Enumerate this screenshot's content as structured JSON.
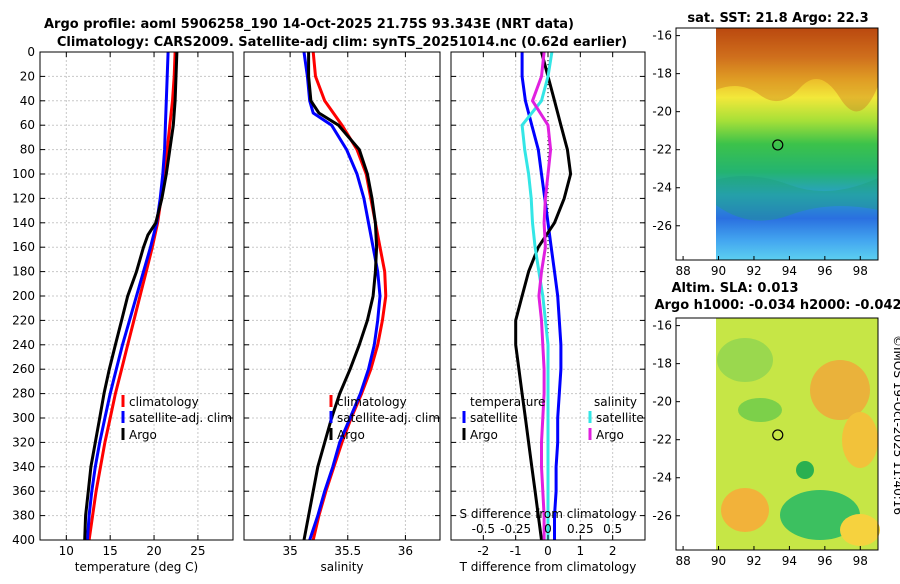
{
  "header": {
    "title_line1": "Argo profile: aoml 5906258_190 14-Oct-2025 21.75S 93.343E (NRT data)",
    "title_line2": "Climatology: CARS2009. Satellite-adj clim: synTS_20251014.nc (0.62d earlier)"
  },
  "maps": {
    "sst_title": "sat. SST: 21.8 Argo: 22.3",
    "sla_title1": "Altim. SLA: 0.013",
    "sla_title2": "Argo h1000: -0.034 h2000: -0.042",
    "credit": "©IMOS 19-Oct-2025 11:40:16",
    "lon_ticks": [
      "88",
      "90",
      "92",
      "94",
      "96",
      "98"
    ],
    "lat_ticks": [
      "-16",
      "-18",
      "-20",
      "-22",
      "-24",
      "-26"
    ],
    "argo_position": {
      "lon": 93.343,
      "lat": -21.75
    }
  },
  "colors": {
    "climatology": "#ff0000",
    "satellite": "#0000ff",
    "argo": "#000000",
    "sat_salinity": "#33e6e6",
    "argo_salinity": "#e020e0"
  },
  "chart_data": [
    {
      "type": "line",
      "title": "",
      "xlabel": "temperature (deg C)",
      "ylabel": "",
      "xlim": [
        7,
        29
      ],
      "ylim": [
        400,
        0
      ],
      "x_ticks": [
        10,
        15,
        20,
        25
      ],
      "x_tick_labels": [
        "10",
        "15",
        "20",
        "25"
      ],
      "y_ticks": [
        0,
        20,
        40,
        60,
        80,
        100,
        120,
        140,
        160,
        180,
        200,
        220,
        240,
        260,
        280,
        300,
        320,
        340,
        360,
        380,
        400
      ],
      "y_tick_labels": [
        "0",
        "20",
        "40",
        "60",
        "80",
        "100",
        "120",
        "140",
        "160",
        "180",
        "200",
        "220",
        "240",
        "260",
        "280",
        "300",
        "320",
        "340",
        "360",
        "380",
        "400"
      ],
      "legend": [
        "climatology",
        "satellite-adj. clim",
        "Argo"
      ],
      "series": [
        {
          "name": "climatology",
          "color": "#ff0000",
          "depth": [
            0,
            20,
            40,
            60,
            80,
            100,
            120,
            140,
            160,
            180,
            200,
            220,
            240,
            260,
            280,
            300,
            320,
            340,
            360,
            380,
            400
          ],
          "values": [
            22.4,
            22.3,
            22.1,
            21.8,
            21.5,
            21.2,
            20.8,
            20.4,
            19.8,
            19.1,
            18.4,
            17.7,
            17.0,
            16.3,
            15.6,
            15.0,
            14.4,
            13.9,
            13.4,
            13.0,
            12.6
          ]
        },
        {
          "name": "satellite-adj. clim",
          "color": "#0000ff",
          "depth": [
            0,
            20,
            40,
            60,
            80,
            100,
            120,
            140,
            160,
            180,
            200,
            220,
            240,
            260,
            280,
            300,
            320,
            340,
            360,
            380,
            400
          ],
          "values": [
            21.6,
            21.5,
            21.4,
            21.3,
            21.2,
            21.0,
            20.7,
            20.3,
            19.6,
            18.8,
            18.0,
            17.2,
            16.4,
            15.7,
            15.0,
            14.4,
            13.8,
            13.3,
            12.9,
            12.6,
            12.4
          ]
        },
        {
          "name": "Argo",
          "color": "#000000",
          "depth": [
            0,
            20,
            40,
            60,
            80,
            100,
            120,
            140,
            150,
            160,
            180,
            200,
            220,
            240,
            260,
            280,
            300,
            320,
            340,
            360,
            380,
            400
          ],
          "values": [
            22.6,
            22.5,
            22.4,
            22.2,
            21.8,
            21.4,
            20.9,
            20.2,
            19.3,
            18.8,
            18.0,
            17.0,
            16.3,
            15.6,
            14.9,
            14.3,
            13.8,
            13.3,
            12.8,
            12.5,
            12.2,
            12.1
          ]
        }
      ]
    },
    {
      "type": "line",
      "title": "",
      "xlabel": "salinity",
      "ylabel": "",
      "xlim": [
        34.6,
        36.3
      ],
      "ylim": [
        400,
        0
      ],
      "x_ticks": [
        35,
        35.5,
        36
      ],
      "x_tick_labels": [
        "35",
        "35.5",
        "36"
      ],
      "legend": [
        "climatology",
        "satellite-adj. clim",
        "Argo"
      ],
      "series": [
        {
          "name": "climatology",
          "color": "#ff0000",
          "depth": [
            0,
            20,
            40,
            60,
            80,
            100,
            120,
            140,
            160,
            180,
            200,
            220,
            240,
            260,
            280,
            300,
            320,
            340,
            360,
            380,
            400
          ],
          "values": [
            35.2,
            35.22,
            35.3,
            35.45,
            35.58,
            35.66,
            35.7,
            35.74,
            35.78,
            35.82,
            35.83,
            35.8,
            35.76,
            35.7,
            35.62,
            35.53,
            35.45,
            35.38,
            35.31,
            35.25,
            35.2
          ]
        },
        {
          "name": "satellite-adj. clim",
          "color": "#0000ff",
          "depth": [
            0,
            20,
            40,
            50,
            60,
            80,
            100,
            120,
            140,
            160,
            180,
            200,
            220,
            240,
            260,
            280,
            300,
            320,
            340,
            360,
            380,
            400
          ],
          "values": [
            35.12,
            35.15,
            35.17,
            35.2,
            35.36,
            35.49,
            35.58,
            35.64,
            35.68,
            35.72,
            35.76,
            35.78,
            35.76,
            35.73,
            35.68,
            35.61,
            35.52,
            35.43,
            35.37,
            35.3,
            35.24,
            35.17
          ]
        },
        {
          "name": "Argo",
          "color": "#000000",
          "depth": [
            0,
            20,
            40,
            50,
            60,
            80,
            100,
            120,
            140,
            160,
            180,
            200,
            220,
            240,
            260,
            280,
            300,
            320,
            340,
            360,
            380,
            400
          ],
          "values": [
            35.16,
            35.16,
            35.18,
            35.25,
            35.42,
            35.6,
            35.67,
            35.71,
            35.74,
            35.75,
            35.74,
            35.72,
            35.67,
            35.6,
            35.52,
            35.43,
            35.36,
            35.3,
            35.24,
            35.2,
            35.16,
            35.12
          ]
        }
      ]
    },
    {
      "type": "line",
      "title": "",
      "xlabel": "T difference from climatology",
      "ylabel": "",
      "xlim": [
        -3,
        3
      ],
      "ylim": [
        400,
        0
      ],
      "x_ticks": [
        -2,
        -1,
        0,
        1,
        2
      ],
      "x_tick_labels": [
        "-2",
        "-1",
        "0",
        "1",
        "2"
      ],
      "secondary_xlabel": "S difference from climatology",
      "secondary_x_ticks": [
        -0.5,
        -0.25,
        0,
        0.25,
        0.5
      ],
      "secondary_x_tick_labels": [
        "-0.5",
        "-0.25",
        "0",
        "0.25",
        "0.5"
      ],
      "legend_temperature_title": "temperature",
      "legend_salinity_title": "salinity",
      "legend": [
        "satellite",
        "Argo",
        "satellite",
        "Argo"
      ],
      "series": [
        {
          "name": "temperature satellite",
          "color": "#0000ff",
          "depth": [
            0,
            20,
            40,
            60,
            80,
            100,
            120,
            140,
            160,
            180,
            200,
            220,
            240,
            260,
            280,
            300,
            320,
            340,
            360,
            380,
            400
          ],
          "values": [
            -0.8,
            -0.8,
            -0.7,
            -0.5,
            -0.3,
            -0.2,
            -0.1,
            0.0,
            0.1,
            0.2,
            0.3,
            0.35,
            0.4,
            0.4,
            0.35,
            0.3,
            0.3,
            0.25,
            0.25,
            0.2,
            0.2
          ]
        },
        {
          "name": "temperature Argo",
          "color": "#000000",
          "depth": [
            0,
            20,
            40,
            60,
            80,
            100,
            120,
            140,
            160,
            180,
            200,
            220,
            240,
            260,
            280,
            300,
            320,
            340,
            360,
            380,
            400
          ],
          "values": [
            -0.2,
            0.0,
            0.2,
            0.4,
            0.6,
            0.7,
            0.5,
            0.2,
            -0.3,
            -0.6,
            -0.8,
            -1.0,
            -1.0,
            -0.9,
            -0.8,
            -0.7,
            -0.6,
            -0.5,
            -0.4,
            -0.3,
            -0.2
          ]
        },
        {
          "name": "salinity satellite",
          "color": "#33e6e6",
          "depth": [
            0,
            20,
            40,
            60,
            80,
            100,
            120,
            140,
            160,
            180,
            200,
            220,
            240,
            260,
            280,
            300,
            320,
            340,
            360,
            380,
            400
          ],
          "values": [
            0.03,
            0.0,
            -0.05,
            -0.2,
            -0.18,
            -0.15,
            -0.13,
            -0.12,
            -0.1,
            -0.07,
            -0.04,
            -0.02,
            0.0,
            0.0,
            0.0,
            0.0,
            0.0,
            0.0,
            0.0,
            0.0,
            0.0
          ]
        },
        {
          "name": "salinity Argo",
          "color": "#e020e0",
          "depth": [
            0,
            20,
            40,
            60,
            80,
            100,
            120,
            140,
            160,
            180,
            200,
            220,
            240,
            260,
            280,
            300,
            320,
            340,
            360,
            380,
            400
          ],
          "values": [
            -0.03,
            -0.05,
            -0.12,
            0.0,
            0.02,
            0.0,
            -0.02,
            -0.03,
            -0.02,
            -0.05,
            -0.07,
            -0.05,
            -0.04,
            -0.03,
            -0.03,
            -0.04,
            -0.05,
            -0.05,
            -0.04,
            -0.03,
            -0.03
          ]
        }
      ]
    }
  ]
}
